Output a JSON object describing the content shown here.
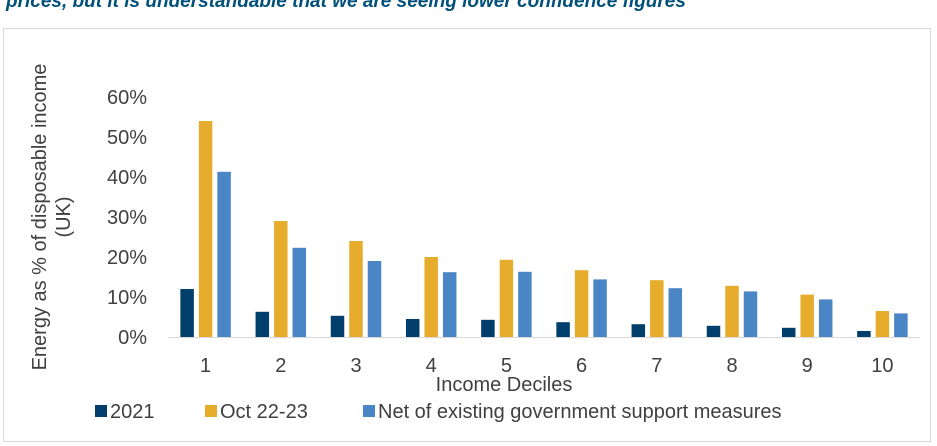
{
  "headline": "prices, but it is understandable that we are seeing lower confidence figures",
  "chart_data": {
    "type": "bar",
    "title": "",
    "xlabel": "Income Deciles",
    "ylabel_lines": [
      "Energy as % of disposable income",
      "(UK)"
    ],
    "categories": [
      "1",
      "2",
      "3",
      "4",
      "5",
      "6",
      "7",
      "8",
      "9",
      "10"
    ],
    "y_ticks": [
      "0%",
      "10%",
      "20%",
      "30%",
      "40%",
      "50%",
      "60%"
    ],
    "ylim": [
      0,
      60
    ],
    "grid": false,
    "legend_position": "bottom",
    "series": [
      {
        "name": "2021",
        "color": "#003f6b",
        "values": [
          12,
          6.3,
          5.3,
          4.5,
          4.3,
          3.7,
          3.2,
          2.8,
          2.3,
          1.5
        ]
      },
      {
        "name": "Oct 22-23",
        "color": "#e6ac2c",
        "values": [
          54,
          29,
          24,
          20,
          19.3,
          16.7,
          14.2,
          12.8,
          10.6,
          6.5
        ]
      },
      {
        "name": "Net of existing government support measures",
        "color": "#4a86c5",
        "values": [
          41.3,
          22.3,
          19,
          16.2,
          16.3,
          14.4,
          12.2,
          11.4,
          9.4,
          5.9
        ]
      }
    ]
  }
}
